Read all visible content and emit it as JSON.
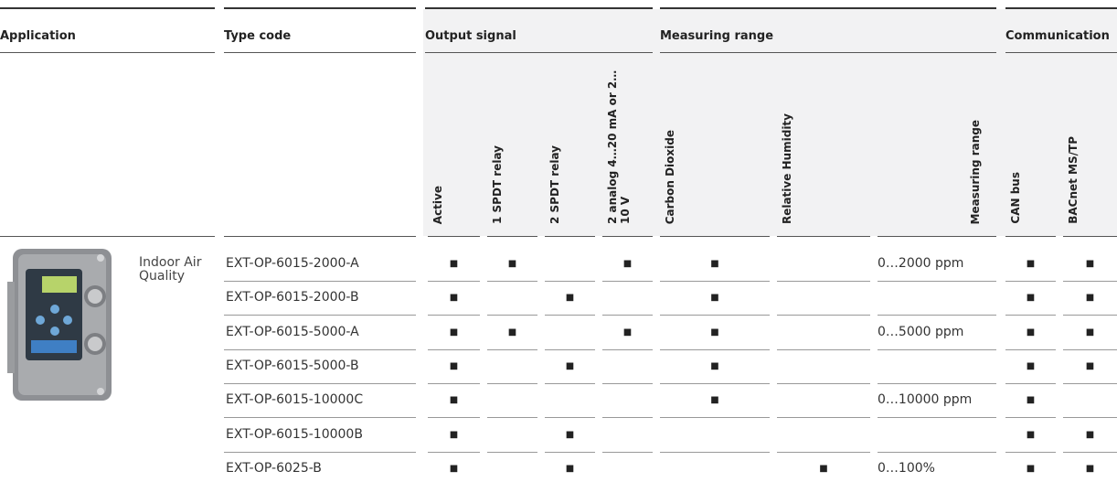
{
  "table": {
    "groups": [
      "Application",
      "Type code",
      "Output signal",
      "Measuring range",
      "Communication"
    ],
    "columns": [
      "Active",
      "1 SPDT relay",
      "2 SPDT relay",
      "2 analog 4…20 mA or 2…10 V",
      "Carbon Dioxide",
      "Relative Humidity",
      "Measuring range",
      "CAN bus",
      "BACnet MS/TP"
    ],
    "application": "Indoor Air Quality",
    "rows": [
      {
        "code": "EXT-OP-6015-2000-A",
        "cells": [
          "■",
          "■",
          null,
          "■",
          "■",
          null,
          "0…2000 ppm",
          "■",
          "■"
        ]
      },
      {
        "code": "EXT-OP-6015-2000-B",
        "cells": [
          "■",
          null,
          "■",
          null,
          "■",
          null,
          null,
          "■",
          "■"
        ]
      },
      {
        "code": "EXT-OP-6015-5000-A",
        "cells": [
          "■",
          "■",
          null,
          "■",
          "■",
          null,
          "0…5000 ppm",
          "■",
          "■"
        ]
      },
      {
        "code": "EXT-OP-6015-5000-B",
        "cells": [
          "■",
          null,
          "■",
          null,
          "■",
          null,
          null,
          "■",
          "■"
        ]
      },
      {
        "code": "EXT-OP-6015-10000C",
        "cells": [
          "■",
          null,
          null,
          null,
          "■",
          null,
          "0…10000 ppm",
          "■",
          null
        ]
      },
      {
        "code": "EXT-OP-6015-10000B",
        "cells": [
          "■",
          null,
          "■",
          null,
          null,
          null,
          null,
          "■",
          "■"
        ]
      },
      {
        "code": "EXT-OP-6025-B",
        "cells": [
          "■",
          null,
          "■",
          null,
          null,
          "■",
          "0…100%",
          "■",
          "■"
        ]
      }
    ]
  }
}
